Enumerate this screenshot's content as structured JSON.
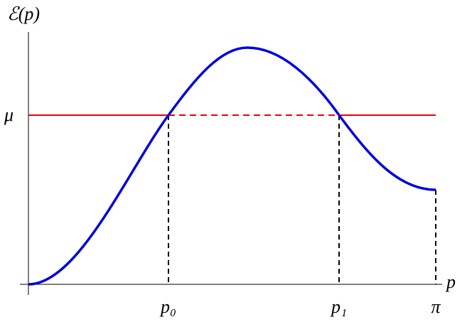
{
  "axes": {
    "y_label": "ℰ(p)",
    "x_label": "p"
  },
  "levels": {
    "mu": "μ"
  },
  "points": {
    "p0": "p₀",
    "p1": "p₁",
    "end": "π"
  }
}
